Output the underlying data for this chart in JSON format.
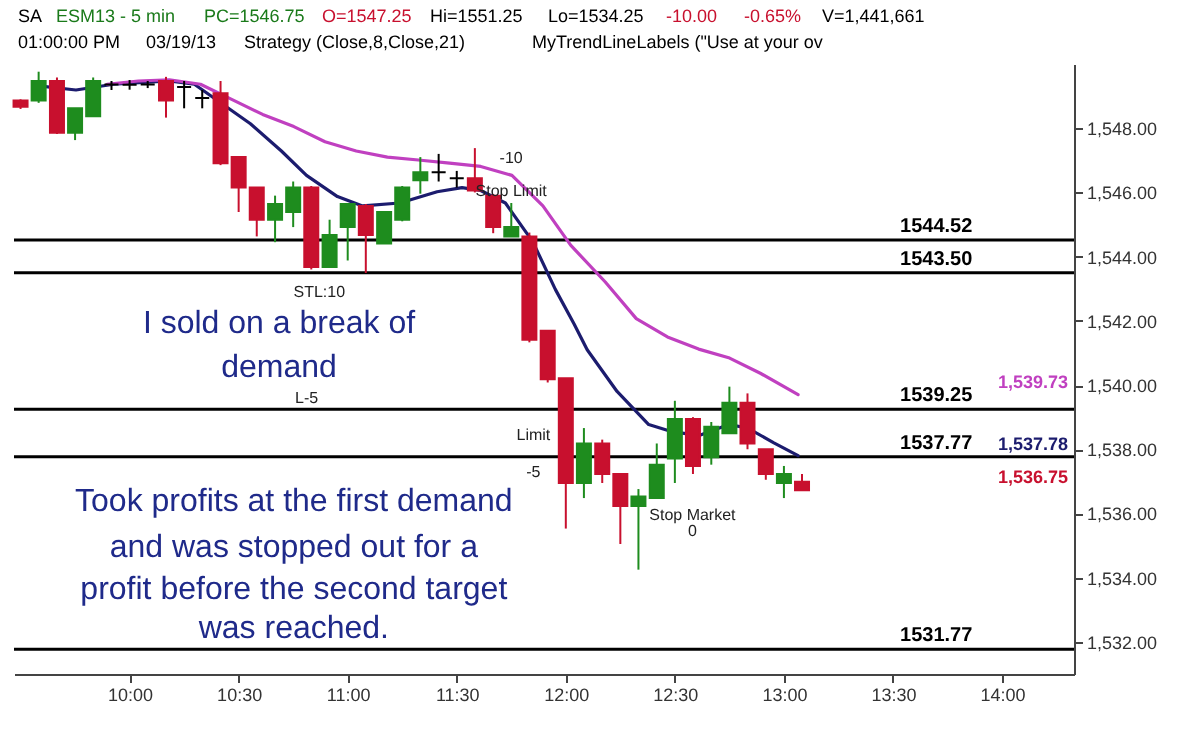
{
  "chart_data": {
    "type": "candlestick",
    "x": [
      9.5,
      9.583,
      9.667,
      9.75,
      9.833,
      9.917,
      10,
      10.083,
      10.167,
      10.25,
      10.333,
      10.417,
      10.5,
      10.583,
      10.667,
      10.75,
      10.833,
      10.917,
      11,
      11.083,
      11.167,
      11.25,
      11.333,
      11.417,
      11.5,
      11.583,
      11.667,
      11.75,
      11.833,
      11.917,
      12,
      12.083,
      12.167,
      12.25,
      12.333,
      12.417,
      12.5,
      12.583,
      12.667,
      12.75,
      12.833,
      12.917,
      13,
      13.083
    ],
    "ohlc": [
      [
        1548.86,
        1548.9,
        1548.6,
        1548.67
      ],
      [
        1548.86,
        1549.76,
        1548.79,
        1549.47
      ],
      [
        1549.47,
        1549.58,
        1547.82,
        1547.86
      ],
      [
        1547.86,
        1548.62,
        1547.63,
        1548.62
      ],
      [
        1548.37,
        1549.58,
        1548.37,
        1549.47
      ],
      [
        1549.36,
        1549.47,
        1549.19,
        1549.36
      ],
      [
        1549.35,
        1549.5,
        1549.2,
        1549.35
      ],
      [
        1549.36,
        1549.47,
        1549.25,
        1549.36
      ],
      [
        1549.47,
        1549.6,
        1548.33,
        1548.86
      ],
      [
        1549.28,
        1549.47,
        1548.62,
        1549.28
      ],
      [
        1548.94,
        1549.19,
        1548.62,
        1548.94
      ],
      [
        1549.09,
        1549.47,
        1546.85,
        1546.91
      ],
      [
        1547.1,
        1547.1,
        1545.39,
        1546.15
      ],
      [
        1546.15,
        1546.15,
        1544.63,
        1545.15
      ],
      [
        1545.15,
        1545.9,
        1544.45,
        1545.64
      ],
      [
        1545.39,
        1546.34,
        1544.92,
        1546.15
      ],
      [
        1546.15,
        1546.2,
        1543.6,
        1543.68
      ],
      [
        1543.68,
        1545.15,
        1543.68,
        1544.67
      ],
      [
        1544.92,
        1545.64,
        1543.88,
        1545.64
      ],
      [
        1545.58,
        1545.64,
        1543.49,
        1544.67
      ],
      [
        1544.41,
        1545.39,
        1544.41,
        1545.39
      ],
      [
        1545.15,
        1546.2,
        1545.1,
        1546.15
      ],
      [
        1546.38,
        1547.1,
        1545.96,
        1546.63
      ],
      [
        1546.63,
        1547.2,
        1546.34,
        1546.63
      ],
      [
        1546.44,
        1546.67,
        1546.15,
        1546.44
      ],
      [
        1546.44,
        1547.38,
        1546,
        1546.06
      ],
      [
        1545.9,
        1545.95,
        1544.73,
        1544.92
      ],
      [
        1544.63,
        1545.67,
        1544.63,
        1544.92
      ],
      [
        1544.63,
        1544.75,
        1541.33,
        1541.41
      ],
      [
        1541.69,
        1541.69,
        1540.08,
        1540.18
      ],
      [
        1540.21,
        1540.21,
        1535.53,
        1536.95
      ],
      [
        1536.95,
        1538.66,
        1536.48,
        1538.18
      ],
      [
        1538.18,
        1538.3,
        1536.95,
        1537.23
      ],
      [
        1537.23,
        1537.23,
        1535.05,
        1536.23
      ],
      [
        1536.23,
        1536.76,
        1534.25,
        1536.53
      ],
      [
        1536.48,
        1538.18,
        1536.48,
        1537.52
      ],
      [
        1537.71,
        1539.51,
        1536.95,
        1538.94
      ],
      [
        1538.94,
        1539,
        1537.23,
        1537.48
      ],
      [
        1537.75,
        1538.85,
        1537.52,
        1538.7
      ],
      [
        1538.5,
        1539.95,
        1538.49,
        1539.45
      ],
      [
        1539.45,
        1539.74,
        1538,
        1538.18
      ],
      [
        1538,
        1538,
        1537.05,
        1537.23
      ],
      [
        1536.95,
        1537.48,
        1536.48,
        1537.23
      ],
      [
        1536.99,
        1537.23,
        1536.72,
        1536.72
      ]
    ],
    "series": [
      {
        "type": "line",
        "color": "#1c1c6e",
        "x": [
          9.583,
          9.754,
          9.926,
          10.182,
          10.297,
          10.554,
          10.696,
          10.811,
          10.953,
          11.068,
          11.239,
          11.41,
          11.524,
          11.61,
          11.723,
          11.849,
          11.952,
          12.038,
          12.098,
          12.235,
          12.38,
          12.491,
          12.611,
          12.748,
          12.834,
          12.954,
          13.065
        ],
        "values": [
          1549.32,
          1549.19,
          1549.37,
          1549.47,
          1549.37,
          1548.14,
          1547.29,
          1546.53,
          1545.87,
          1545.58,
          1545.67,
          1546.02,
          1546.15,
          1546.06,
          1545.67,
          1544.46,
          1542.98,
          1541.9,
          1541.1,
          1539.8,
          1538.77,
          1538.54,
          1538.43,
          1538.77,
          1538.66,
          1538.2,
          1537.8
        ]
      },
      {
        "type": "line",
        "color": "#c040c0",
        "x": [
          9.897,
          10.04,
          10.182,
          10.325,
          10.468,
          10.61,
          10.753,
          10.896,
          11.039,
          11.182,
          11.324,
          11.467,
          11.61,
          11.753,
          11.895,
          12.023,
          12.181,
          12.323,
          12.466,
          12.609,
          12.751,
          12.894,
          13.065
        ],
        "values": [
          1549.37,
          1549.47,
          1549.51,
          1549.37,
          1548.9,
          1548.43,
          1548.05,
          1547.58,
          1547.29,
          1547.1,
          1547.01,
          1546.91,
          1546.81,
          1546.53,
          1545.58,
          1544.35,
          1543.21,
          1542.07,
          1541.5,
          1541.12,
          1540.84,
          1540.36,
          1539.7
        ]
      }
    ],
    "xlim": [
      9.47,
      14.33
    ],
    "xticks": [
      {
        "value": 10,
        "label": "10:00"
      },
      {
        "value": 10.5,
        "label": "10:30"
      },
      {
        "value": 11,
        "label": "11:00"
      },
      {
        "value": 11.5,
        "label": "11:30"
      },
      {
        "value": 12,
        "label": "12:00"
      },
      {
        "value": 12.5,
        "label": "12:30"
      },
      {
        "value": 13,
        "label": "13:00"
      },
      {
        "value": 13.5,
        "label": "13:30"
      },
      {
        "value": 14,
        "label": "14:00"
      }
    ],
    "ylim": [
      1531,
      1550
    ],
    "yticks": [
      {
        "value": 1532,
        "label": "1,532.00"
      },
      {
        "value": 1534,
        "label": "1,534.00"
      },
      {
        "value": 1536,
        "label": "1,536.00"
      },
      {
        "value": 1538,
        "label": "1,538.00"
      },
      {
        "value": 1540,
        "label": "1,540.00"
      },
      {
        "value": 1542,
        "label": "1,542.00"
      },
      {
        "value": 1544,
        "label": "1,544.00"
      },
      {
        "value": 1546,
        "label": "1,546.00"
      },
      {
        "value": 1548,
        "label": "1,548.00"
      }
    ],
    "ref_lines": [
      {
        "axis": "y",
        "value": 1544.52,
        "label": "1544.52"
      },
      {
        "axis": "y",
        "value": 1543.5,
        "label": "1543.50"
      },
      {
        "axis": "y",
        "value": 1539.25,
        "label": "1539.25"
      },
      {
        "axis": "y",
        "value": 1537.77,
        "label": "1537.77"
      },
      {
        "axis": "y",
        "value": 1531.77,
        "label": "1531.77"
      }
    ],
    "annotations": [
      "SA",
      "ESM13 - 5 min",
      "PC=1546.75",
      "O=1547.25",
      "Hi=1551.25",
      "Lo=1534.25",
      "-10.00",
      "-0.65%",
      "V=1,441,661",
      "01:00:00 PM",
      "03/19/13",
      "Strategy (Close,8,Close,21)",
      "MyTrendLineLabels (\"Use at your ov",
      "I sold on a break of demand",
      "Took profits at the first demand and was stopped out for a profit before the second target was reached.",
      "-10",
      "Stop Limit",
      "STL:10",
      "L-5",
      "Limit",
      "-5",
      "Stop Market",
      "0",
      "1,539.73",
      "1,537.78",
      "1,536.75"
    ]
  }
}
